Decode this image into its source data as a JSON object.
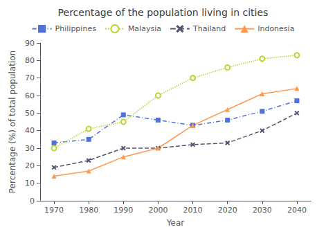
{
  "chart_data": {
    "type": "line",
    "title": "Percentage of the population living in cities",
    "xlabel": "Year",
    "ylabel": "Percentage (%) of total population",
    "x": [
      1970,
      1980,
      1990,
      2000,
      2010,
      2020,
      2030,
      2040
    ],
    "series": [
      {
        "name": "Philippines",
        "values": [
          33,
          35,
          49,
          46,
          43,
          46,
          51,
          57
        ],
        "marker": "square",
        "line_style": "dashdot"
      },
      {
        "name": "Malaysia",
        "values": [
          30,
          41,
          45,
          60,
          70,
          76,
          81,
          83
        ],
        "marker": "open_circle",
        "line_style": "dotted"
      },
      {
        "name": "Thailand",
        "values": [
          19,
          23,
          30,
          30,
          32,
          33,
          40,
          50
        ],
        "marker": "x",
        "line_style": "dashed"
      },
      {
        "name": "Indonesia",
        "values": [
          14,
          17,
          25,
          30,
          43,
          52,
          61,
          64
        ],
        "marker": "triangle",
        "line_style": "solid"
      }
    ],
    "xlim": [
      1966,
      2044
    ],
    "xticks": [
      1970,
      1980,
      1990,
      2000,
      2010,
      2020,
      2030,
      2040
    ],
    "ylim": [
      0,
      90
    ],
    "yticks": [
      0,
      10,
      20,
      30,
      40,
      50,
      60,
      70,
      80,
      90
    ],
    "grid": false,
    "legend": "top"
  }
}
